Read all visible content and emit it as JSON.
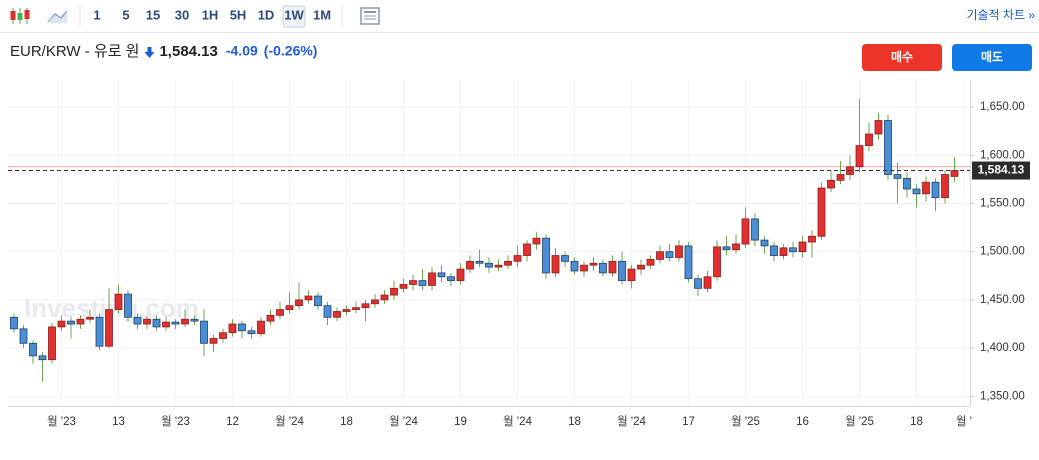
{
  "toolbar": {
    "intervals": [
      "1",
      "5",
      "15",
      "30",
      "1H",
      "5H",
      "1D",
      "1W",
      "1M"
    ],
    "active": "1W",
    "link": "기술적 차트 »"
  },
  "header": {
    "title": "EUR/KRW - 유로 원",
    "price": "1,584.13",
    "change": "-4.09",
    "change_pct": "(-0.26%)",
    "buy": "매수",
    "sell": "매도"
  },
  "chart_data": {
    "type": "candlestick",
    "watermark": "Investing.com",
    "categories": [
      null,
      null,
      null,
      null,
      null,
      "월 '23",
      null,
      null,
      null,
      null,
      null,
      "13",
      null,
      null,
      null,
      null,
      null,
      "월 '23",
      null,
      null,
      null,
      null,
      null,
      "12",
      null,
      null,
      null,
      null,
      null,
      "월 '24",
      null,
      null,
      null,
      null,
      null,
      "18",
      null,
      null,
      null,
      null,
      null,
      "월 '24",
      null,
      null,
      null,
      null,
      null,
      "19",
      null,
      null,
      null,
      null,
      null,
      "월 '24",
      null,
      null,
      null,
      null,
      null,
      "18",
      null,
      null,
      null,
      null,
      null,
      "월 '24",
      null,
      null,
      null,
      null,
      null,
      "17",
      null,
      null,
      null,
      null,
      null,
      "월 '25",
      null,
      null,
      null,
      null,
      null,
      "16",
      null,
      null,
      null,
      null,
      null,
      "월 '25",
      null,
      null,
      null,
      null,
      null,
      "18",
      null,
      null,
      null,
      null,
      "월 '"
    ],
    "open": [
      1432,
      1420,
      1405,
      1392,
      1388,
      1422,
      1428,
      1425,
      1430,
      1432,
      1402,
      1440,
      1456,
      1432,
      1425,
      1430,
      1422,
      1427,
      1425,
      1430,
      1428,
      1405,
      1410,
      1416,
      1425,
      1418,
      1415,
      1428,
      1434,
      1440,
      1444,
      1450,
      1454,
      1444,
      1432,
      1438,
      1440,
      1442,
      1446,
      1450,
      1455,
      1462,
      1466,
      1470,
      1465,
      1478,
      1474,
      1470,
      1482,
      1490,
      1488,
      1484,
      1486,
      1490,
      1496,
      1508,
      1514,
      1478,
      1496,
      1490,
      1480,
      1486,
      1488,
      1478,
      1490,
      1470,
      1482,
      1486,
      1492,
      1500,
      1494,
      1506,
      1472,
      1462,
      1474,
      1505,
      1502,
      1508,
      1534,
      1512,
      1506,
      1496,
      1504,
      1500,
      1510,
      1516,
      1566,
      1574,
      1580,
      1588,
      1610,
      1622,
      1636,
      1580,
      1576,
      1565,
      1560,
      1572,
      1556,
      1578,
      null
    ],
    "high": [
      1436,
      1424,
      1408,
      1396,
      1426,
      1434,
      1432,
      1434,
      1440,
      1436,
      1462,
      1466,
      1460,
      1436,
      1434,
      1434,
      1432,
      1430,
      1440,
      1434,
      1440,
      1414,
      1420,
      1430,
      1428,
      1422,
      1432,
      1440,
      1448,
      1458,
      1468,
      1460,
      1458,
      1448,
      1442,
      1444,
      1448,
      1450,
      1456,
      1460,
      1470,
      1472,
      1476,
      1482,
      1484,
      1486,
      1478,
      1488,
      1496,
      1502,
      1494,
      1492,
      1496,
      1506,
      1512,
      1520,
      1518,
      1504,
      1500,
      1494,
      1490,
      1494,
      1492,
      1496,
      1500,
      1486,
      1492,
      1496,
      1506,
      1508,
      1512,
      1510,
      1476,
      1480,
      1512,
      1516,
      1518,
      1546,
      1540,
      1516,
      1510,
      1508,
      1510,
      1516,
      1522,
      1572,
      1584,
      1594,
      1600,
      1658,
      1634,
      1644,
      1642,
      1592,
      1582,
      1570,
      1578,
      1576,
      1584,
      1598,
      null
    ],
    "low": [
      1416,
      1400,
      1384,
      1365,
      1384,
      1418,
      1410,
      1420,
      1426,
      1398,
      1400,
      1436,
      1428,
      1420,
      1420,
      1418,
      1418,
      1420,
      1422,
      1424,
      1392,
      1396,
      1406,
      1412,
      1410,
      1410,
      1412,
      1424,
      1430,
      1436,
      1440,
      1446,
      1440,
      1424,
      1428,
      1434,
      1436,
      1428,
      1442,
      1446,
      1450,
      1458,
      1460,
      1460,
      1460,
      1468,
      1464,
      1466,
      1478,
      1484,
      1478,
      1480,
      1482,
      1484,
      1490,
      1502,
      1472,
      1474,
      1484,
      1476,
      1474,
      1480,
      1474,
      1474,
      1466,
      1462,
      1476,
      1482,
      1488,
      1490,
      1490,
      1468,
      1454,
      1458,
      1470,
      1496,
      1498,
      1504,
      1506,
      1498,
      1490,
      1492,
      1494,
      1494,
      1494,
      1512,
      1562,
      1570,
      1574,
      1582,
      1604,
      1616,
      1574,
      1550,
      1556,
      1546,
      1552,
      1542,
      1550,
      1572,
      null
    ],
    "close": [
      1420,
      1405,
      1392,
      1388,
      1422,
      1428,
      1425,
      1430,
      1432,
      1402,
      1440,
      1456,
      1432,
      1425,
      1430,
      1422,
      1427,
      1425,
      1430,
      1428,
      1405,
      1410,
      1416,
      1425,
      1418,
      1415,
      1428,
      1434,
      1440,
      1444,
      1450,
      1454,
      1444,
      1432,
      1438,
      1440,
      1442,
      1446,
      1450,
      1455,
      1462,
      1466,
      1470,
      1465,
      1478,
      1474,
      1470,
      1482,
      1490,
      1488,
      1484,
      1486,
      1490,
      1496,
      1508,
      1514,
      1478,
      1496,
      1490,
      1480,
      1486,
      1488,
      1478,
      1490,
      1470,
      1482,
      1486,
      1492,
      1500,
      1494,
      1506,
      1472,
      1462,
      1474,
      1505,
      1502,
      1508,
      1534,
      1512,
      1506,
      1496,
      1504,
      1500,
      1510,
      1516,
      1566,
      1574,
      1580,
      1588,
      1610,
      1622,
      1636,
      1580,
      1576,
      1565,
      1560,
      1572,
      1556,
      1580,
      1584.13,
      null
    ],
    "up_color": "#e03131",
    "down_color": "#4a8fd6",
    "wick_color": "#6aa84f",
    "previous_close": 1588.22,
    "last_price_label": "1,584.13",
    "ylim": [
      1340,
      1678
    ],
    "yticks": [
      {
        "value": 1350,
        "label": "1,350.00"
      },
      {
        "value": 1400,
        "label": "1,400.00"
      },
      {
        "value": 1450,
        "label": "1,450.00"
      },
      {
        "value": 1500,
        "label": "1,500.00"
      },
      {
        "value": 1550,
        "label": "1,550.00"
      },
      {
        "value": 1600,
        "label": "1,600.00"
      },
      {
        "value": 1650,
        "label": "1,650.00"
      }
    ],
    "grid": true
  }
}
